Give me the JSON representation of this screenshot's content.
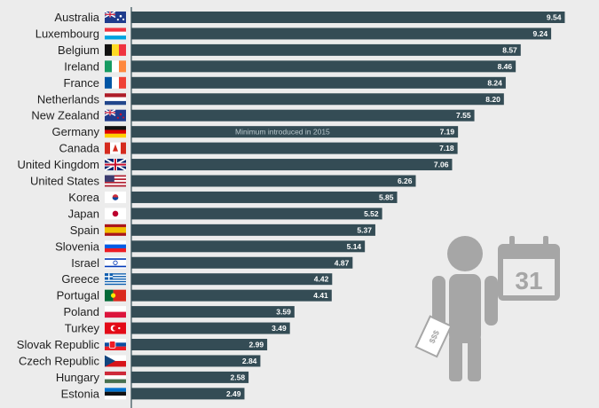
{
  "chart_data": {
    "type": "bar",
    "orientation": "horizontal",
    "title": "",
    "xlabel": "",
    "ylabel": "",
    "xlim": [
      0,
      10
    ],
    "grid": false,
    "legend": "none",
    "categories": [
      "Australia",
      "Luxembourg",
      "Belgium",
      "Ireland",
      "France",
      "Netherlands",
      "New Zealand",
      "Germany",
      "Canada",
      "United Kingdom",
      "United States",
      "Korea",
      "Japan",
      "Spain",
      "Slovenia",
      "Israel",
      "Greece",
      "Portugal",
      "Poland",
      "Turkey",
      "Slovak Republic",
      "Czech Republic",
      "Hungary",
      "Estonia"
    ],
    "values": [
      9.54,
      9.24,
      8.57,
      8.46,
      8.24,
      8.2,
      7.55,
      7.19,
      7.18,
      7.06,
      6.26,
      5.85,
      5.52,
      5.37,
      5.14,
      4.87,
      4.42,
      4.41,
      3.59,
      3.49,
      2.99,
      2.84,
      2.58,
      2.49
    ],
    "value_labels": [
      "9.54",
      "9.24",
      "8.57",
      "8.46",
      "8.24",
      "8.20",
      "7.55",
      "7.19",
      "7.18",
      "7.06",
      "6.26",
      "5.85",
      "5.52",
      "5.37",
      "5.14",
      "4.87",
      "4.42",
      "4.41",
      "3.59",
      "3.49",
      "2.99",
      "2.84",
      "2.58",
      "2.49"
    ],
    "annotations": [
      {
        "category": "Germany",
        "text": "Minimum introduced in 2015"
      }
    ],
    "bar_color": "#344c55",
    "illustration": [
      "person-with-paycheck-icon",
      "calendar-icon"
    ],
    "calendar_text": "31",
    "paycheck_text": "$$$"
  }
}
